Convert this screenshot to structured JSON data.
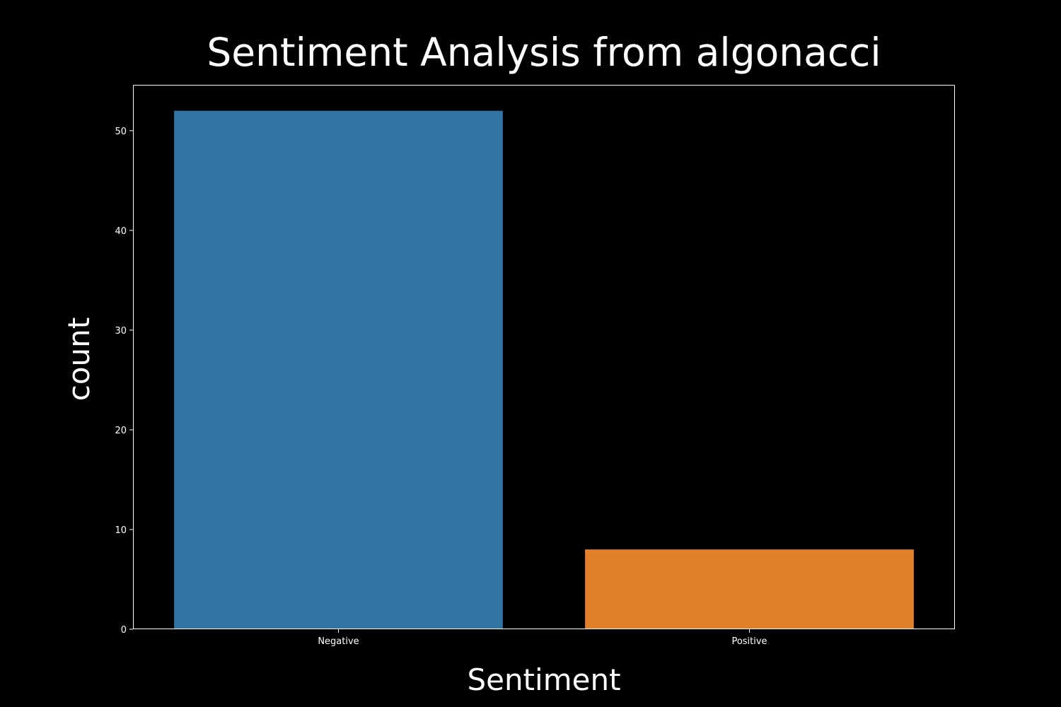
{
  "chart_data": {
    "type": "bar",
    "title": "Sentiment Analysis from algonacci",
    "xlabel": "Sentiment",
    "ylabel": "count",
    "categories": [
      "Negative",
      "Positive"
    ],
    "values": [
      52,
      8
    ],
    "bar_colors": [
      "#3274a1",
      "#e1812c"
    ],
    "ylim": [
      0,
      54.6
    ],
    "yticks": [
      0,
      10,
      20,
      30,
      40,
      50
    ],
    "grid": false,
    "background": "#000000",
    "foreground": "#ffffff"
  }
}
